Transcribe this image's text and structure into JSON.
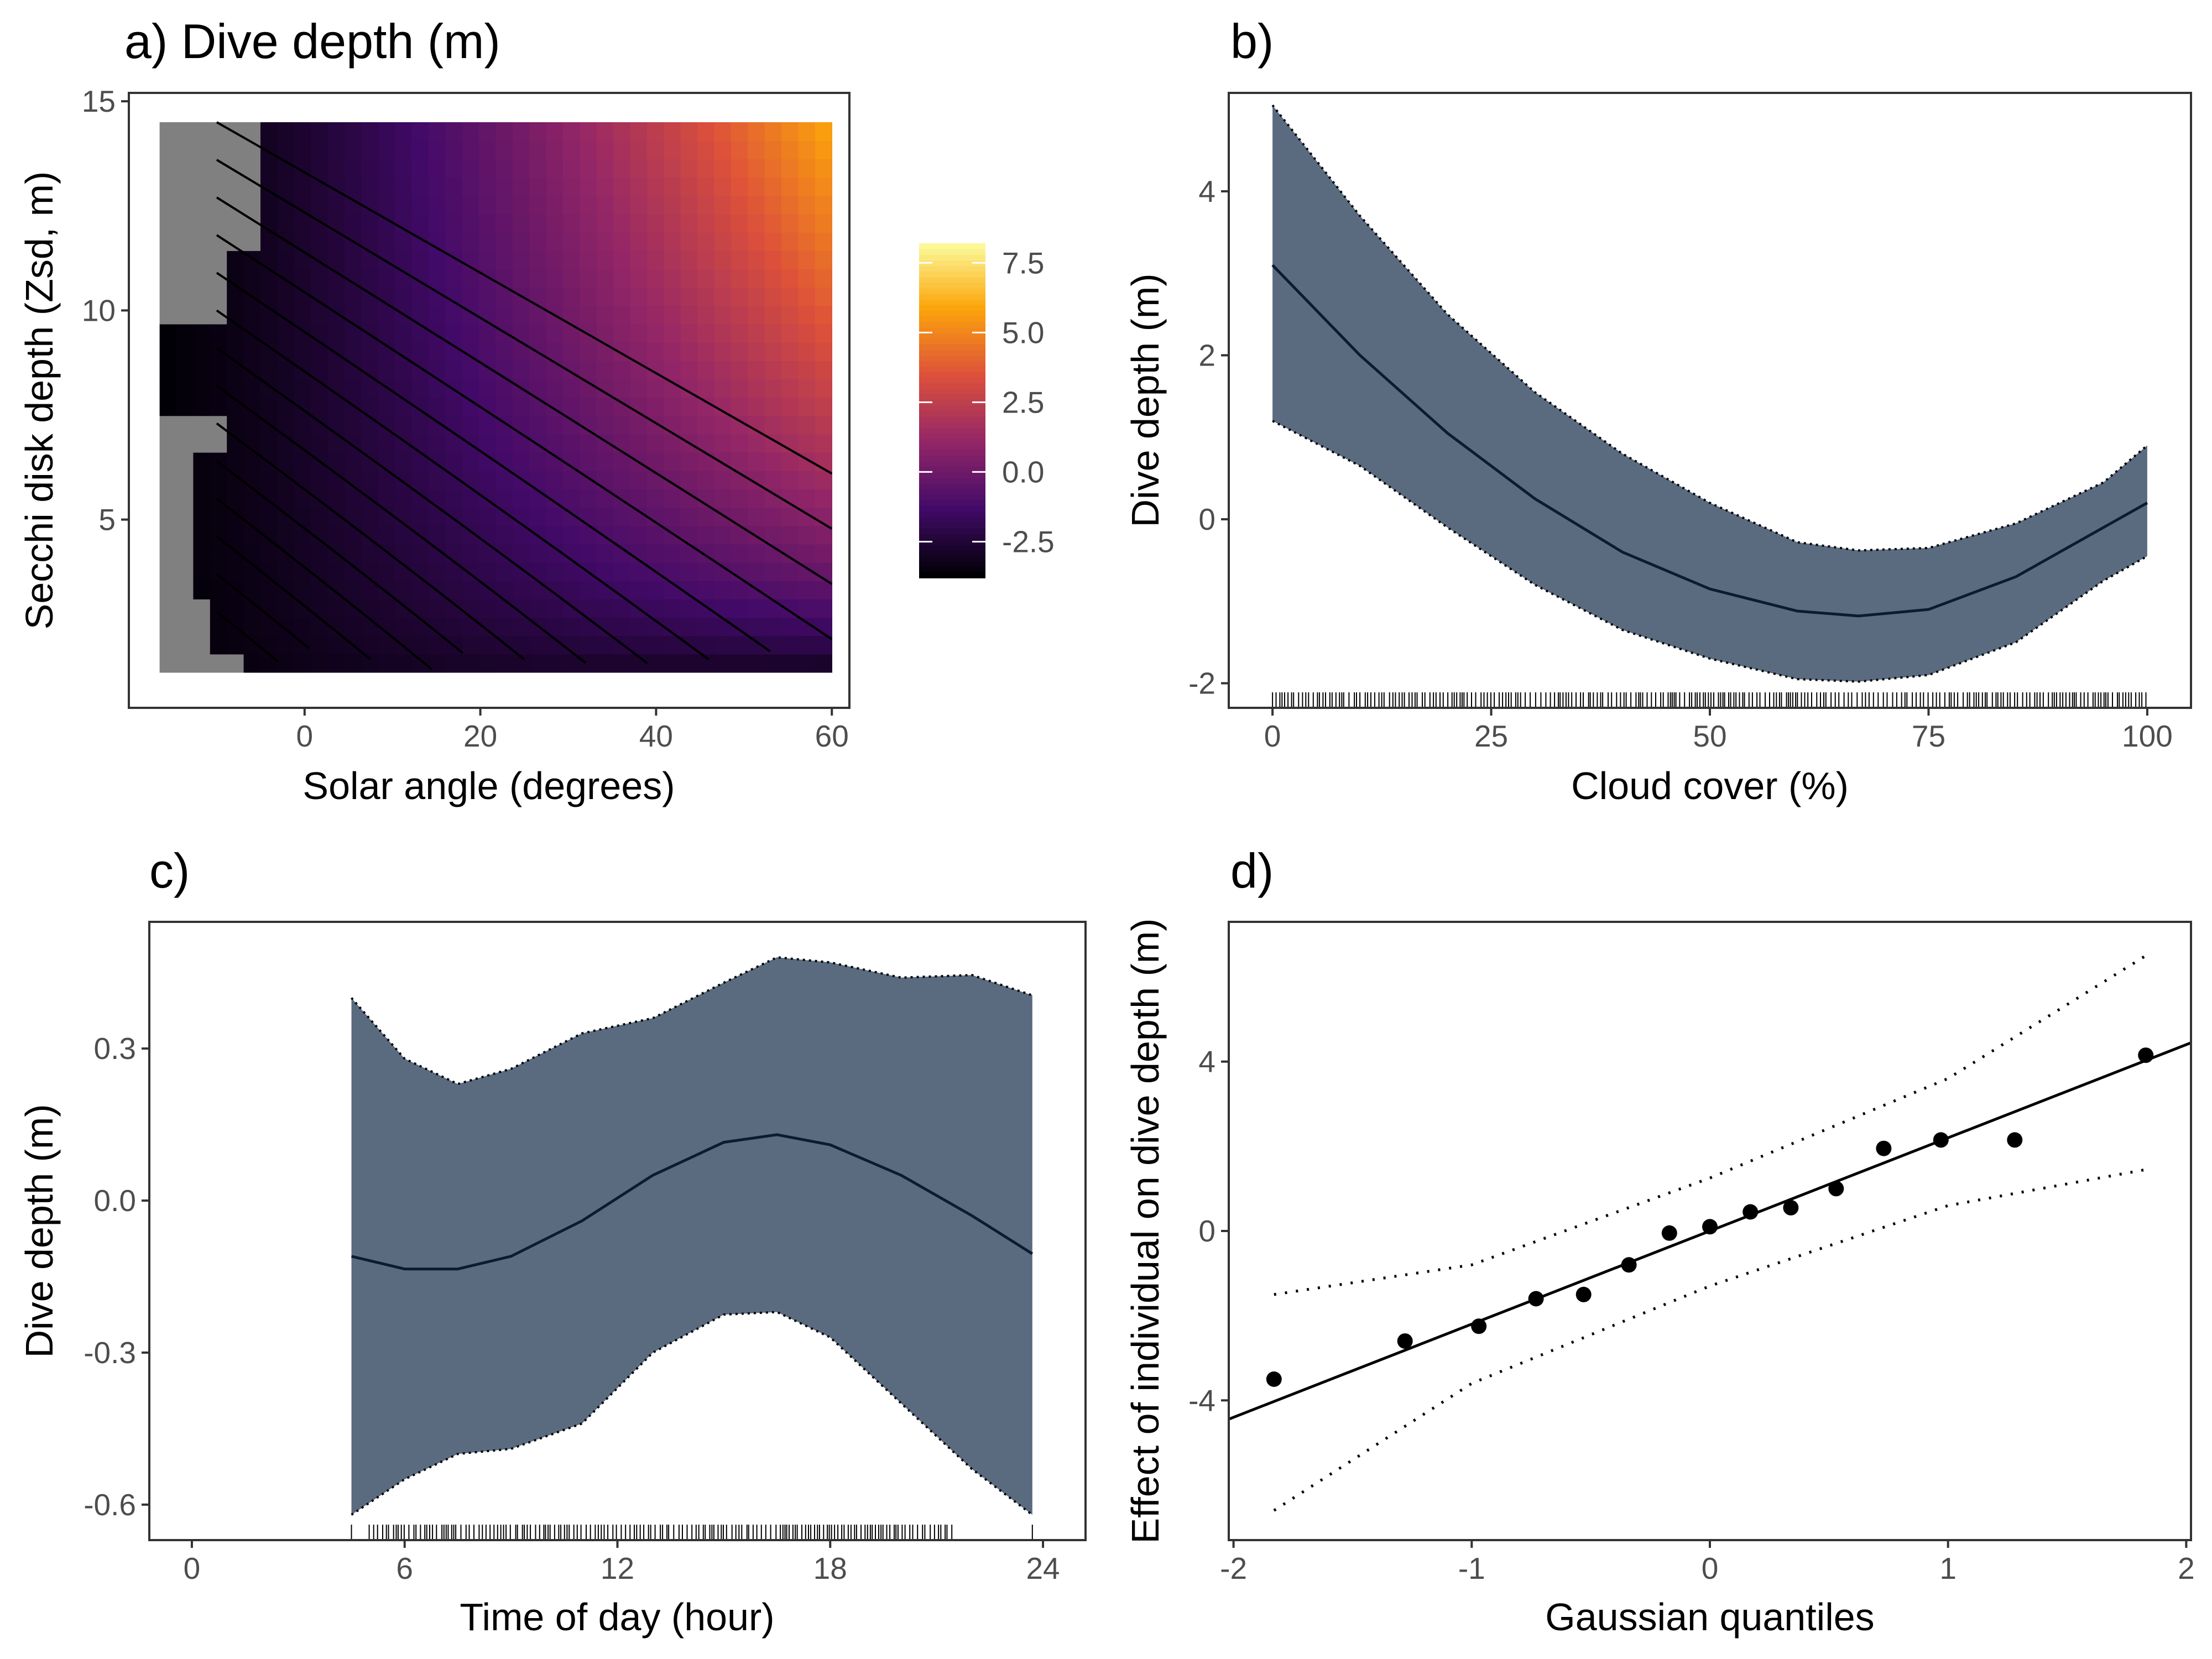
{
  "chart_data": [
    {
      "type": "heatmap",
      "title": "a) Dive depth (m)",
      "xlabel": "Solar angle (degrees)",
      "ylabel": "Secchi disk depth (Zsd, m)",
      "xlim": [
        -20,
        62
      ],
      "ylim": [
        0.5,
        15.2
      ],
      "x_ticks": [
        "0",
        "20",
        "40",
        "60"
      ],
      "y_ticks": [
        "5",
        "10",
        "15"
      ],
      "colorbar": {
        "ticks": [
          "7.5",
          "5.0",
          "2.5",
          "0.0",
          "-2.5"
        ],
        "range": [
          -3.8,
          8.2
        ]
      },
      "colors": [
        "#000004",
        "#420a68",
        "#932667",
        "#dd513a",
        "#fca50a",
        "#fcffa4"
      ],
      "na_color": "#808080",
      "value_range_shown": [
        -3.8,
        8.2
      ],
      "grid": false
    },
    {
      "type": "line",
      "title": "b)",
      "xlabel": "Cloud cover (%)",
      "ylabel": "Dive depth (m)",
      "xlim": [
        -5,
        105
      ],
      "ylim": [
        -2.3,
        5.2
      ],
      "x_ticks": [
        "0",
        "25",
        "50",
        "75",
        "100"
      ],
      "y_ticks": [
        "-2",
        "0",
        "2",
        "4"
      ],
      "x": [
        0,
        10,
        20,
        30,
        40,
        50,
        60,
        67,
        75,
        85,
        95,
        100
      ],
      "fit": [
        3.1,
        2.0,
        1.05,
        0.25,
        -0.4,
        -0.85,
        -1.12,
        -1.18,
        -1.1,
        -0.7,
        -0.1,
        0.2
      ],
      "upper": [
        5.05,
        3.7,
        2.5,
        1.55,
        0.8,
        0.2,
        -0.28,
        -0.38,
        -0.35,
        -0.05,
        0.45,
        0.9
      ],
      "lower": [
        1.2,
        0.65,
        -0.1,
        -0.8,
        -1.35,
        -1.7,
        -1.95,
        -1.98,
        -1.9,
        -1.5,
        -0.75,
        -0.45
      ],
      "band_color": "#5a6b80",
      "grid": false
    },
    {
      "type": "line",
      "title": "c)",
      "xlabel": "Time of day (hour)",
      "ylabel": "Dive depth (m)",
      "xlim": [
        -1.2,
        25.2
      ],
      "ylim": [
        -0.67,
        0.55
      ],
      "x_ticks": [
        "0",
        "6",
        "12",
        "18",
        "24"
      ],
      "y_ticks": [
        "0.3",
        "0.0",
        "-0.3",
        "-0.6"
      ],
      "x": [
        4.5,
        6,
        7.5,
        9,
        11,
        13,
        15,
        16.5,
        18,
        20,
        22,
        23.7
      ],
      "fit": [
        -0.11,
        -0.135,
        -0.135,
        -0.11,
        -0.04,
        0.05,
        0.115,
        0.13,
        0.11,
        0.05,
        -0.03,
        -0.105
      ],
      "upper": [
        0.4,
        0.28,
        0.23,
        0.26,
        0.33,
        0.36,
        0.43,
        0.48,
        0.47,
        0.44,
        0.445,
        0.405
      ],
      "lower": [
        -0.62,
        -0.55,
        -0.5,
        -0.49,
        -0.44,
        -0.3,
        -0.225,
        -0.22,
        -0.27,
        -0.4,
        -0.53,
        -0.62
      ],
      "band_color": "#5a6b80",
      "grid": false
    },
    {
      "type": "scatter",
      "title": "d)",
      "xlabel": "Gaussian quantiles",
      "ylabel": "Effect of individual on dive depth (m)",
      "xlim": [
        -2.02,
        2.02
      ],
      "ylim": [
        -7.3,
        7.3
      ],
      "x_ticks": [
        "-2",
        "-1",
        "0",
        "1",
        "2"
      ],
      "y_ticks": [
        "4",
        "0",
        "-4"
      ],
      "x": [
        -1.83,
        -1.28,
        -0.97,
        -0.73,
        -0.53,
        -0.34,
        -0.17,
        0.0,
        0.17,
        0.34,
        0.53,
        0.73,
        0.97,
        1.28,
        1.83
      ],
      "y": [
        -3.5,
        -2.6,
        -2.25,
        -1.6,
        -1.5,
        -0.8,
        -0.05,
        0.1,
        0.45,
        0.55,
        1.0,
        1.95,
        2.15,
        2.15,
        4.15
      ],
      "ref_line": {
        "slope": 2.2,
        "intercept": 0.0
      },
      "ci_upper": {
        "x": [
          -1.83,
          -1.0,
          0.0,
          1.0,
          1.83
        ],
        "y": [
          -1.5,
          -0.8,
          1.25,
          3.6,
          6.5
        ]
      },
      "ci_lower": {
        "x": [
          -1.83,
          -1.0,
          0.0,
          1.0,
          1.83
        ],
        "y": [
          -6.6,
          -3.6,
          -1.3,
          0.6,
          1.45
        ]
      },
      "grid": false
    }
  ]
}
